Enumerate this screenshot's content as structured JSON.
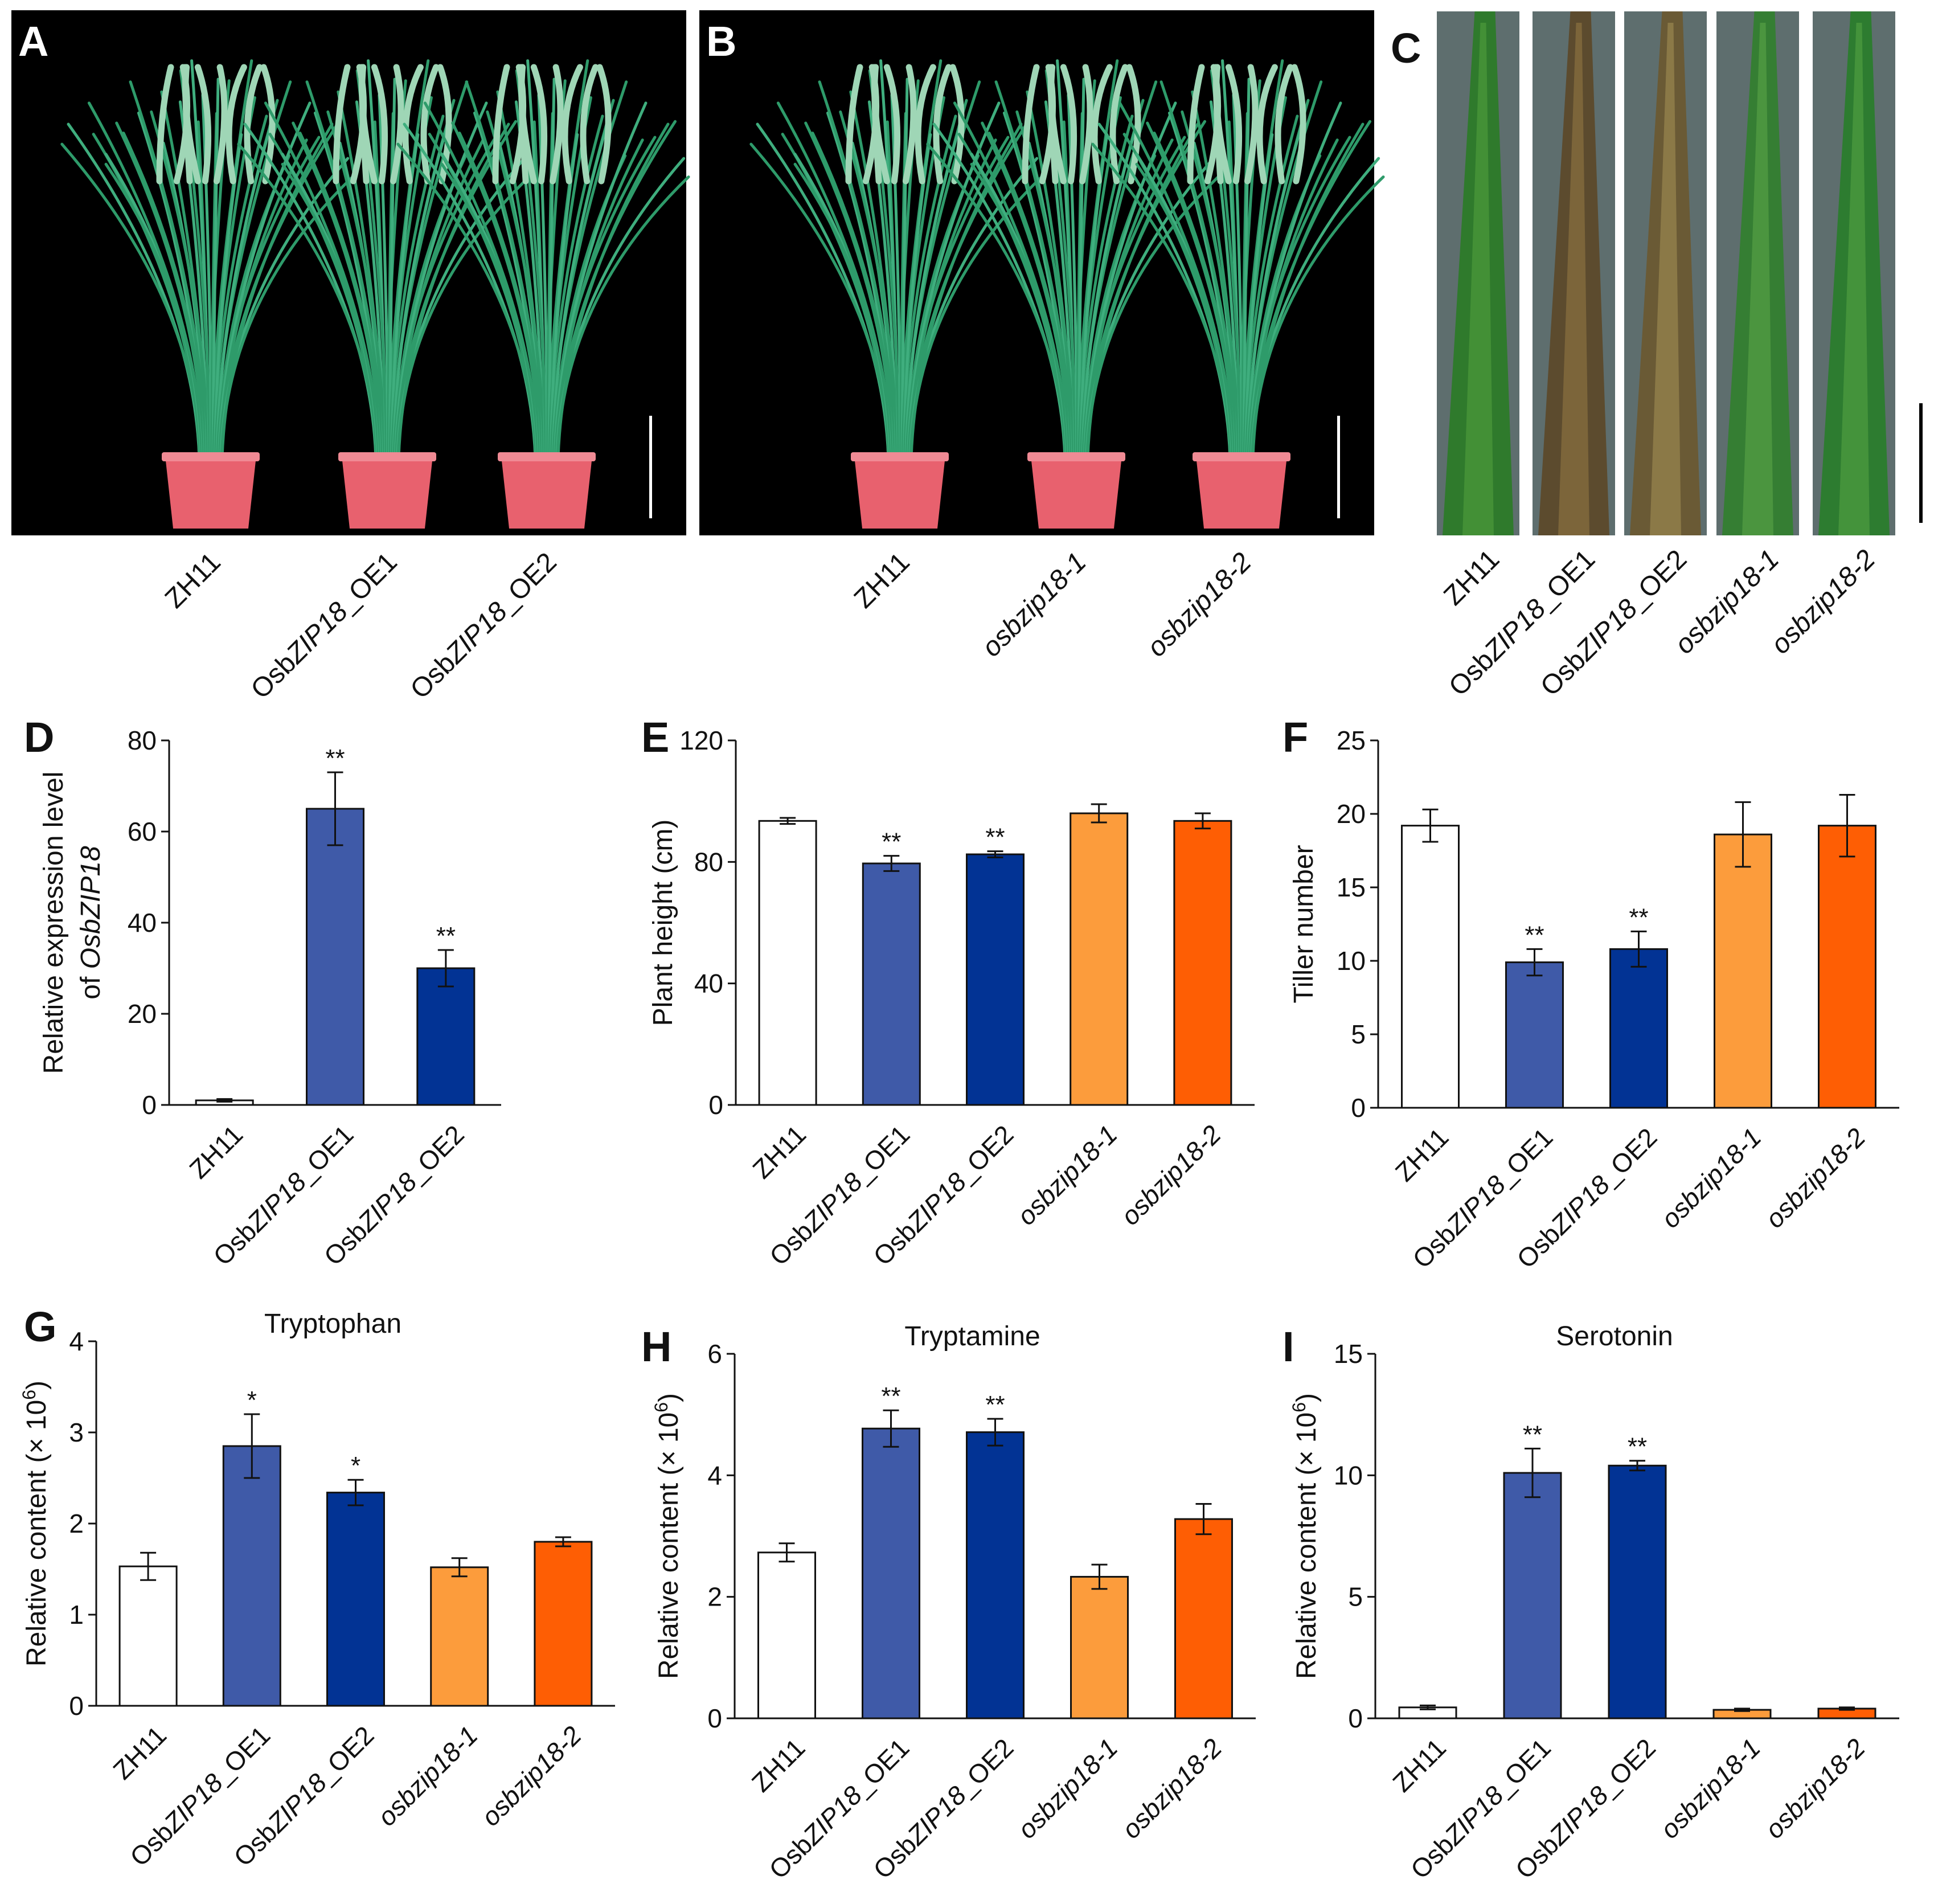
{
  "photos": [
    {
      "letter": "A",
      "labels": [
        {
          "pre": "ZH11",
          "it": "",
          "post": ""
        },
        {
          "pre": "Osb",
          "it": "ZIP18",
          "post": "_OE1"
        },
        {
          "pre": "Osb",
          "it": "ZIP18",
          "post": "_OE2"
        }
      ]
    },
    {
      "letter": "B",
      "labels": [
        {
          "pre": "ZH11",
          "it": "",
          "post": ""
        },
        {
          "pre": "",
          "it": "osbzip18-1",
          "post": ""
        },
        {
          "pre": "",
          "it": "osbzip18-2",
          "post": ""
        }
      ]
    },
    {
      "letter": "C",
      "labels": [
        {
          "pre": "ZH11",
          "it": "",
          "post": ""
        },
        {
          "pre": "Osb",
          "it": "ZIP18",
          "post": "_OE1"
        },
        {
          "pre": "Osb",
          "it": "ZIP18",
          "post": "_OE2"
        },
        {
          "pre": "",
          "it": "osbzip18-1",
          "post": ""
        },
        {
          "pre": "",
          "it": "osbzip18-2",
          "post": ""
        }
      ]
    }
  ],
  "chart_data": [
    {
      "letter": "D",
      "type": "bar",
      "title": "",
      "ylabel_line1": "Relative expression level",
      "ylabel_line2": {
        "pre": "of ",
        "it": "OsbZIP18"
      },
      "ylim": [
        0,
        80
      ],
      "yticks": [
        0,
        20,
        40,
        60,
        80
      ],
      "categories": [
        {
          "pre": "ZH11",
          "it": "",
          "post": ""
        },
        {
          "pre": "Osb",
          "it": "ZIP18",
          "post": "_OE1"
        },
        {
          "pre": "Osb",
          "it": "ZIP18",
          "post": "_OE2"
        }
      ],
      "values": [
        1,
        65,
        30
      ],
      "errors": [
        0.3,
        8,
        4
      ],
      "significance": [
        "",
        "**",
        "**"
      ],
      "colors": [
        "#ffffff",
        "#3f5aa8",
        "#023394"
      ]
    },
    {
      "letter": "E",
      "type": "bar",
      "title": "",
      "ylabel_line1": "Plant height (cm)",
      "ylim": [
        0,
        120
      ],
      "yticks": [
        0,
        40,
        80,
        120
      ],
      "categories": [
        {
          "pre": "ZH11",
          "it": "",
          "post": ""
        },
        {
          "pre": "Osb",
          "it": "ZIP18",
          "post": "_OE1"
        },
        {
          "pre": "Osb",
          "it": "ZIP18",
          "post": "_OE2"
        },
        {
          "pre": "",
          "it": "osbzip18-1",
          "post": ""
        },
        {
          "pre": "",
          "it": "osbzip18-2",
          "post": ""
        }
      ],
      "values": [
        93.5,
        79.5,
        82.5,
        96,
        93.5
      ],
      "errors": [
        1,
        2.5,
        1,
        3,
        2.5
      ],
      "significance": [
        "",
        "**",
        "**",
        "",
        ""
      ],
      "colors": [
        "#ffffff",
        "#3f5aa8",
        "#023394",
        "#fc9c3c",
        "#fe5e04"
      ]
    },
    {
      "letter": "F",
      "type": "bar",
      "title": "",
      "ylabel_line1": "Tiller number",
      "ylim": [
        0,
        25
      ],
      "yticks": [
        0,
        5,
        10,
        15,
        20,
        25
      ],
      "categories": [
        {
          "pre": "ZH11",
          "it": "",
          "post": ""
        },
        {
          "pre": "Osb",
          "it": "ZIP18",
          "post": "_OE1"
        },
        {
          "pre": "Osb",
          "it": "ZIP18",
          "post": "_OE2"
        },
        {
          "pre": "",
          "it": "osbzip18-1",
          "post": ""
        },
        {
          "pre": "",
          "it": "osbzip18-2",
          "post": ""
        }
      ],
      "values": [
        19.2,
        9.9,
        10.8,
        18.6,
        19.2
      ],
      "errors": [
        1.1,
        0.9,
        1.2,
        2.2,
        2.1
      ],
      "significance": [
        "",
        "**",
        "**",
        "",
        ""
      ],
      "colors": [
        "#ffffff",
        "#3f5aa8",
        "#023394",
        "#fc9c3c",
        "#fe5e04"
      ]
    },
    {
      "letter": "G",
      "type": "bar",
      "title": "Tryptophan",
      "ylabel_line1": "Relative content (× 10",
      "ylabel_sup": "6",
      "ylabel_close": ")",
      "ylim": [
        0,
        4
      ],
      "yticks": [
        0,
        1,
        2,
        3,
        4
      ],
      "categories": [
        {
          "pre": "ZH11",
          "it": "",
          "post": ""
        },
        {
          "pre": "Osb",
          "it": "ZIP18",
          "post": "_OE1"
        },
        {
          "pre": "Osb",
          "it": "ZIP18",
          "post": "_OE2"
        },
        {
          "pre": "",
          "it": "osbzip18-1",
          "post": ""
        },
        {
          "pre": "",
          "it": "osbzip18-2",
          "post": ""
        }
      ],
      "values": [
        1.53,
        2.85,
        2.34,
        1.52,
        1.8
      ],
      "errors": [
        0.15,
        0.35,
        0.14,
        0.1,
        0.05
      ],
      "significance": [
        "",
        "*",
        "*",
        "",
        ""
      ],
      "colors": [
        "#ffffff",
        "#3f5aa8",
        "#023394",
        "#fc9c3c",
        "#fe5e04"
      ]
    },
    {
      "letter": "H",
      "type": "bar",
      "title": "Tryptamine",
      "ylabel_line1": "Relative content (× 10",
      "ylabel_sup": "6",
      "ylabel_close": ")",
      "ylim": [
        0,
        6
      ],
      "yticks": [
        0,
        2,
        4,
        6
      ],
      "categories": [
        {
          "pre": "ZH11",
          "it": "",
          "post": ""
        },
        {
          "pre": "Osb",
          "it": "ZIP18",
          "post": "_OE1"
        },
        {
          "pre": "Osb",
          "it": "ZIP18",
          "post": "_OE2"
        },
        {
          "pre": "",
          "it": "osbzip18-1",
          "post": ""
        },
        {
          "pre": "",
          "it": "osbzip18-2",
          "post": ""
        }
      ],
      "values": [
        2.73,
        4.77,
        4.71,
        2.33,
        3.28
      ],
      "errors": [
        0.15,
        0.3,
        0.22,
        0.2,
        0.25
      ],
      "significance": [
        "",
        "**",
        "**",
        "",
        ""
      ],
      "colors": [
        "#ffffff",
        "#3f5aa8",
        "#023394",
        "#fc9c3c",
        "#fe5e04"
      ]
    },
    {
      "letter": "I",
      "type": "bar",
      "title": "Serotonin",
      "ylabel_line1": "Relative content (× 10",
      "ylabel_sup": "6",
      "ylabel_close": ")",
      "ylim": [
        0,
        15
      ],
      "yticks": [
        0,
        5,
        10,
        15
      ],
      "categories": [
        {
          "pre": "ZH11",
          "it": "",
          "post": ""
        },
        {
          "pre": "Osb",
          "it": "ZIP18",
          "post": "_OE1"
        },
        {
          "pre": "Osb",
          "it": "ZIP18",
          "post": "_OE2"
        },
        {
          "pre": "",
          "it": "osbzip18-1",
          "post": ""
        },
        {
          "pre": "",
          "it": "osbzip18-2",
          "post": ""
        }
      ],
      "values": [
        0.45,
        10.1,
        10.4,
        0.35,
        0.4
      ],
      "errors": [
        0.08,
        1,
        0.2,
        0.05,
        0.05
      ],
      "significance": [
        "",
        "**",
        "**",
        "",
        ""
      ],
      "colors": [
        "#ffffff",
        "#3f5aa8",
        "#023394",
        "#fc9c3c",
        "#fe5e04"
      ]
    }
  ]
}
